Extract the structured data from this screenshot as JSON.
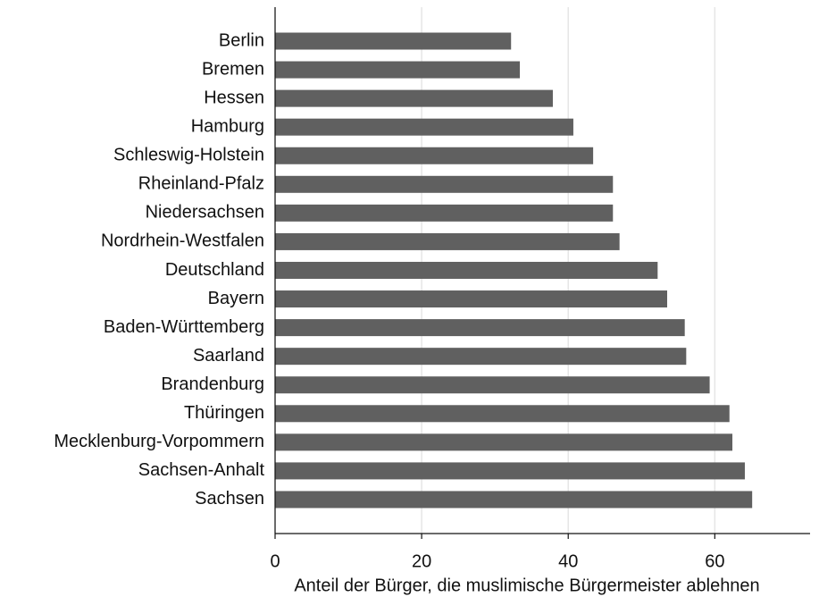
{
  "chart_data": {
    "type": "barh",
    "xlabel": "Anteil der Bürger, die muslimische Bürgermeister ablehnen",
    "categories": [
      "Berlin",
      "Bremen",
      "Hessen",
      "Hamburg",
      "Schleswig-Holstein",
      "Rheinland-Pfalz",
      "Niedersachsen",
      "Nordrhein-Westfalen",
      "Deutschland",
      "Bayern",
      "Baden-Württemberg",
      "Saarland",
      "Brandenburg",
      "Thüringen",
      "Mecklenburg-Vorpommern",
      "Sachsen-Anhalt",
      "Sachsen"
    ],
    "values": [
      32.2,
      33.4,
      37.9,
      40.7,
      43.4,
      46.1,
      46.1,
      47.0,
      52.2,
      53.5,
      55.9,
      56.1,
      59.3,
      62.0,
      62.4,
      64.1,
      65.1
    ],
    "color": "#606060",
    "xlim": [
      0,
      73
    ],
    "xticks": [
      0,
      20,
      40,
      60
    ],
    "grid": true
  }
}
